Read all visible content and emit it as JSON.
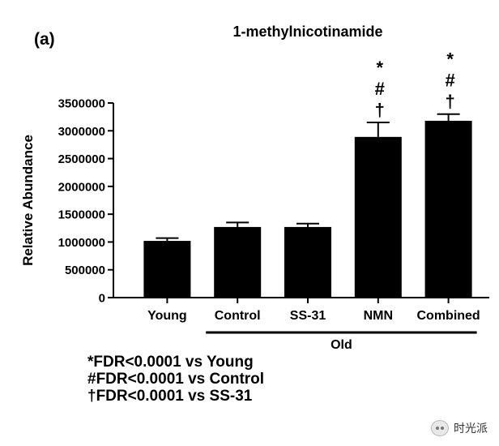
{
  "panel_label": "(a)",
  "chart_data": {
    "type": "bar",
    "title": "1-methylnicotinamide",
    "xlabel": "",
    "ylabel": "Relative Abundance",
    "group_label": "Old",
    "categories": [
      "Young",
      "Control",
      "SS-31",
      "NMN",
      "Combined"
    ],
    "values": [
      1020000,
      1270000,
      1270000,
      2890000,
      3180000
    ],
    "errors": [
      50000,
      80000,
      60000,
      260000,
      120000
    ],
    "significance": [
      [],
      [],
      [],
      [
        "*",
        "#",
        "†"
      ],
      [
        "*",
        "#",
        "†"
      ]
    ],
    "ylim": [
      0,
      3500000
    ],
    "yticks": [
      0,
      500000,
      1000000,
      1500000,
      2000000,
      2500000,
      3000000,
      3500000
    ],
    "ytick_labels": [
      "0",
      "500000",
      "1000000",
      "1500000",
      "2000000",
      "2500000",
      "3000000",
      "3500000"
    ],
    "grid": false,
    "bar_color": "#000000"
  },
  "notes": [
    "*FDR<0.0001 vs Young",
    "#FDR<0.0001 vs Control",
    "†FDR<0.0001 vs SS-31"
  ],
  "watermark": {
    "text": "时光派",
    "icon": "wechat-icon"
  }
}
